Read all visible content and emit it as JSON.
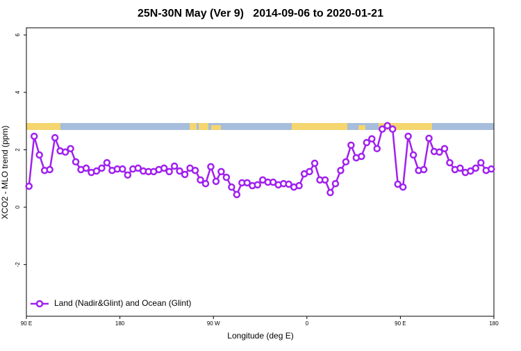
{
  "chart_data": {
    "type": "line",
    "title": "25N-30N May (Ver 9)   2014-09-06 to 2020-01-21",
    "x_label": "Longitude (deg E)",
    "y_label": "XCO2 - MLO trend (ppm)",
    "xlim": [
      90,
      540
    ],
    "xticks": [
      {
        "value": 90,
        "label": "90 E"
      },
      180,
      {
        "value": 270,
        "label": "90 W"
      },
      {
        "value": 360,
        "label": "0"
      },
      {
        "value": 450,
        "label": "90 E"
      },
      {
        "value": 540,
        "label": "180"
      }
    ],
    "ylim": [
      -3.8,
      6.25
    ],
    "yticks": [
      -2,
      0,
      2,
      4,
      6
    ],
    "legend": "bottomleft",
    "x": [
      92.5,
      97.5,
      102.5,
      107.5,
      112.5,
      117.5,
      122.5,
      127.5,
      132.5,
      137.5,
      142.5,
      147.5,
      152.5,
      157.5,
      162.5,
      167.5,
      172.5,
      177.5,
      182.5,
      187.5,
      192.5,
      197.5,
      202.5,
      207.5,
      212.5,
      217.5,
      222.5,
      227.5,
      232.5,
      237.5,
      242.5,
      247.5,
      252.5,
      257.5,
      262.5,
      267.5,
      272.5,
      277.5,
      282.5,
      287.5,
      292.5,
      297.5,
      302.5,
      307.5,
      312.5,
      317.5,
      322.5,
      327.5,
      332.5,
      337.5,
      342.5,
      347.5,
      352.5,
      357.5,
      362.5,
      367.5,
      372.5,
      377.5,
      382.5,
      387.5,
      392.5,
      397.5,
      402.5,
      407.5,
      412.5,
      417.5,
      422.5,
      427.5,
      432.5,
      437.5,
      442.5,
      447.5,
      452.5,
      457.5,
      462.5,
      467.5,
      472.5,
      477.5,
      482.5,
      487.5,
      492.5,
      497.5,
      502.5,
      507.5,
      512.5,
      517.5,
      522.5,
      527.5,
      532.5,
      537.5
    ],
    "series": [
      {
        "name": "Land (Nadir&Glint) and Ocean (Glint)",
        "color": "#a020f0",
        "values": [
          0.73,
          2.47,
          1.82,
          1.28,
          1.31,
          2.42,
          1.96,
          1.92,
          2.04,
          1.58,
          1.31,
          1.36,
          1.21,
          1.26,
          1.36,
          1.55,
          1.28,
          1.33,
          1.33,
          1.12,
          1.33,
          1.36,
          1.26,
          1.24,
          1.24,
          1.31,
          1.36,
          1.24,
          1.43,
          1.26,
          1.14,
          1.36,
          1.28,
          0.95,
          0.82,
          1.41,
          0.9,
          1.24,
          1.04,
          0.7,
          0.44,
          0.85,
          0.85,
          0.75,
          0.78,
          0.95,
          0.87,
          0.87,
          0.78,
          0.82,
          0.8,
          0.7,
          0.75,
          1.16,
          1.24,
          1.53,
          0.95,
          0.95,
          0.51,
          0.82,
          1.28,
          1.58,
          2.16,
          1.72,
          1.77,
          2.25,
          2.38,
          2.04,
          2.72,
          2.84,
          2.72,
          0.8,
          0.7,
          2.47,
          1.82,
          1.28,
          1.31,
          2.4,
          1.94,
          1.92,
          2.04,
          1.55,
          1.31,
          1.36,
          1.21,
          1.26,
          1.36,
          1.55,
          1.28,
          1.33
        ]
      }
    ]
  }
}
